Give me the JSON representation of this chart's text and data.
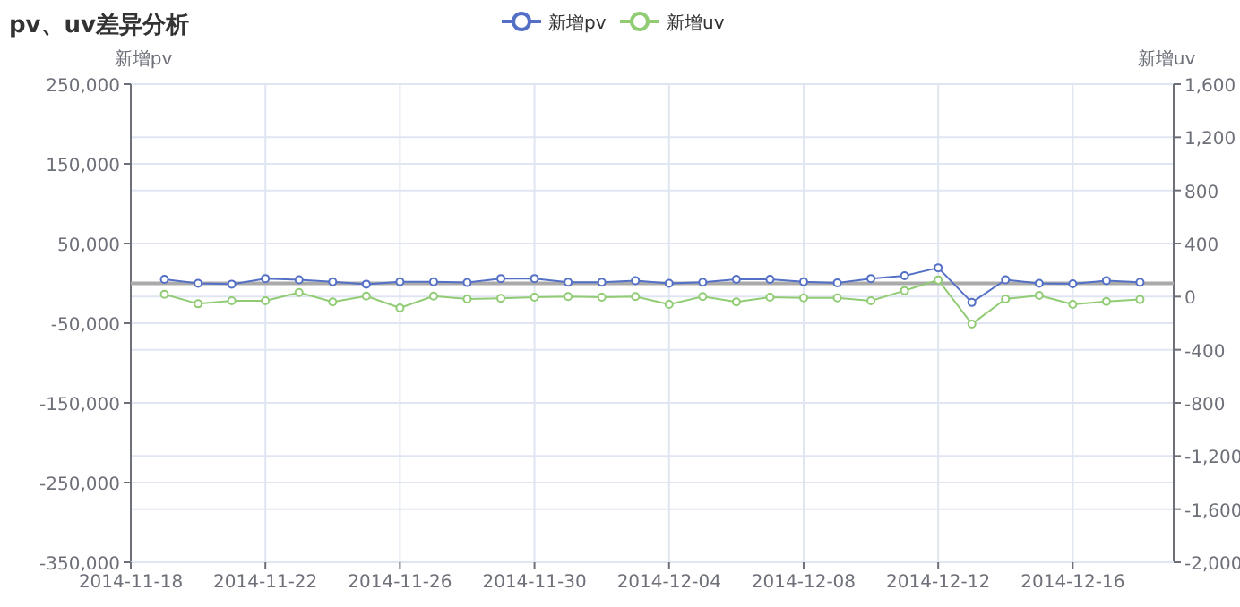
{
  "chart_data": {
    "type": "line",
    "title": "pv、uv差异分析",
    "ylabel": "新增pv",
    "y2label": "新增uv",
    "x": [
      "2014-11-19",
      "2014-11-20",
      "2014-11-21",
      "2014-11-22",
      "2014-11-23",
      "2014-11-24",
      "2014-11-25",
      "2014-11-26",
      "2014-11-27",
      "2014-11-28",
      "2014-11-29",
      "2014-11-30",
      "2014-12-01",
      "2014-12-02",
      "2014-12-03",
      "2014-12-04",
      "2014-12-05",
      "2014-12-06",
      "2014-12-07",
      "2014-12-08",
      "2014-12-09",
      "2014-12-10",
      "2014-12-11",
      "2014-12-12",
      "2014-12-13",
      "2014-12-14",
      "2014-12-15",
      "2014-12-16",
      "2014-12-17",
      "2014-12-18"
    ],
    "series": [
      {
        "name": "新增pv",
        "color": "#5470c6",
        "values": [
          5000,
          0,
          -1000,
          6000,
          4500,
          2000,
          -1000,
          2000,
          2000,
          1000,
          6000,
          6000,
          1500,
          1500,
          3500,
          0,
          1500,
          5000,
          5000,
          2000,
          500,
          6000,
          9500,
          19500,
          -24000,
          4500,
          0,
          -500,
          3500,
          1500
        ]
      },
      {
        "name": "新增uv",
        "color": "#91cc75",
        "axis": "y2",
        "values": [
          18,
          -54,
          -31,
          -31,
          31,
          -40,
          4,
          -85,
          4,
          -18,
          -13,
          -4,
          0,
          -4,
          0,
          -58,
          0,
          -40,
          -4,
          -9,
          -9,
          -31,
          45,
          126,
          -206,
          -18,
          9,
          -58,
          -36,
          -22
        ]
      }
    ],
    "xlim": [
      "2014-11-18",
      "2014-12-19"
    ],
    "xticks": [
      {
        "value": "2014-11-18",
        "label": "2014-11-18"
      },
      {
        "value": "2014-11-22",
        "label": "2014-11-22"
      },
      {
        "value": "2014-11-26",
        "label": "2014-11-26"
      },
      {
        "value": "2014-11-30",
        "label": "2014-11-30"
      },
      {
        "value": "2014-12-04",
        "label": "2014-12-04"
      },
      {
        "value": "2014-12-08",
        "label": "2014-12-08"
      },
      {
        "value": "2014-12-12",
        "label": "2014-12-12"
      },
      {
        "value": "2014-12-16",
        "label": "2014-12-16"
      }
    ],
    "ylim": [
      -350000,
      250000
    ],
    "yticks": [
      {
        "value": 250000,
        "label": "250,000"
      },
      {
        "value": 150000,
        "label": "150,000"
      },
      {
        "value": 50000,
        "label": "50,000"
      },
      {
        "value": -50000,
        "label": "-50,000"
      },
      {
        "value": -150000,
        "label": "-150,000"
      },
      {
        "value": -250000,
        "label": "-250,000"
      },
      {
        "value": -350000,
        "label": "-350,000"
      }
    ],
    "y2lim": [
      -2000,
      1600
    ],
    "y2ticks": [
      {
        "value": 1600,
        "label": "1,600"
      },
      {
        "value": 1200,
        "label": "1,200"
      },
      800,
      400,
      0,
      {
        "value": -400,
        "label": "-400"
      },
      {
        "value": -800,
        "label": "-800"
      },
      {
        "value": -1200,
        "label": "-1,200"
      },
      {
        "value": -1600,
        "label": "-1,600"
      },
      {
        "value": -2000,
        "label": "-2,000"
      }
    ],
    "grid": true,
    "legend": "top",
    "marker": "circle",
    "line_style": "solid"
  }
}
